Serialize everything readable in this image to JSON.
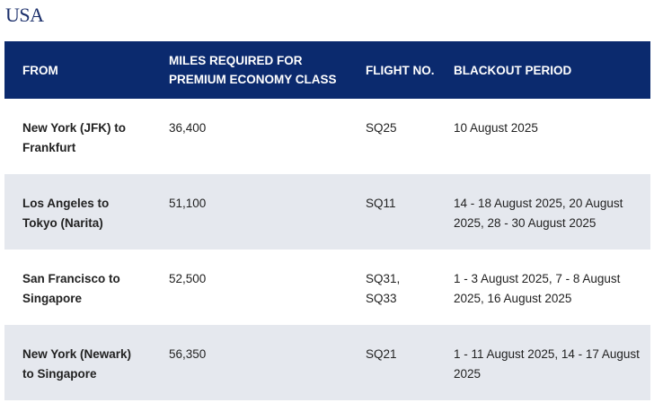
{
  "heading": "USA",
  "table": {
    "headers": {
      "from": "FROM",
      "miles": "MILES REQUIRED FOR PREMIUM ECONOMY CLASS",
      "flight": "FLIGHT NO.",
      "blackout": "BLACKOUT PERIOD"
    },
    "rows": [
      {
        "from": "New York (JFK) to Frankfurt",
        "miles": "36,400",
        "flight": "SQ25",
        "blackout": "10 August 2025"
      },
      {
        "from": "Los Angeles to Tokyo (Narita)",
        "miles": "51,100",
        "flight": "SQ11",
        "blackout": "14 - 18 August 2025, 20 August 2025, 28 - 30 August 2025"
      },
      {
        "from": "San Francisco to Singapore",
        "miles": "52,500",
        "flight": "SQ31, SQ33",
        "blackout": "1 - 3 August 2025,  7 - 8 August 2025, 16 August 2025"
      },
      {
        "from": "New York (Newark) to Singapore",
        "miles": "56,350",
        "flight": "SQ21",
        "blackout": "1 - 11 August 2025, 14 - 17 August 2025"
      }
    ]
  },
  "colors": {
    "header_bg": "#0b2a6e",
    "heading_text": "#1b2f6b",
    "row_alt_bg": "#e5e8ee"
  }
}
